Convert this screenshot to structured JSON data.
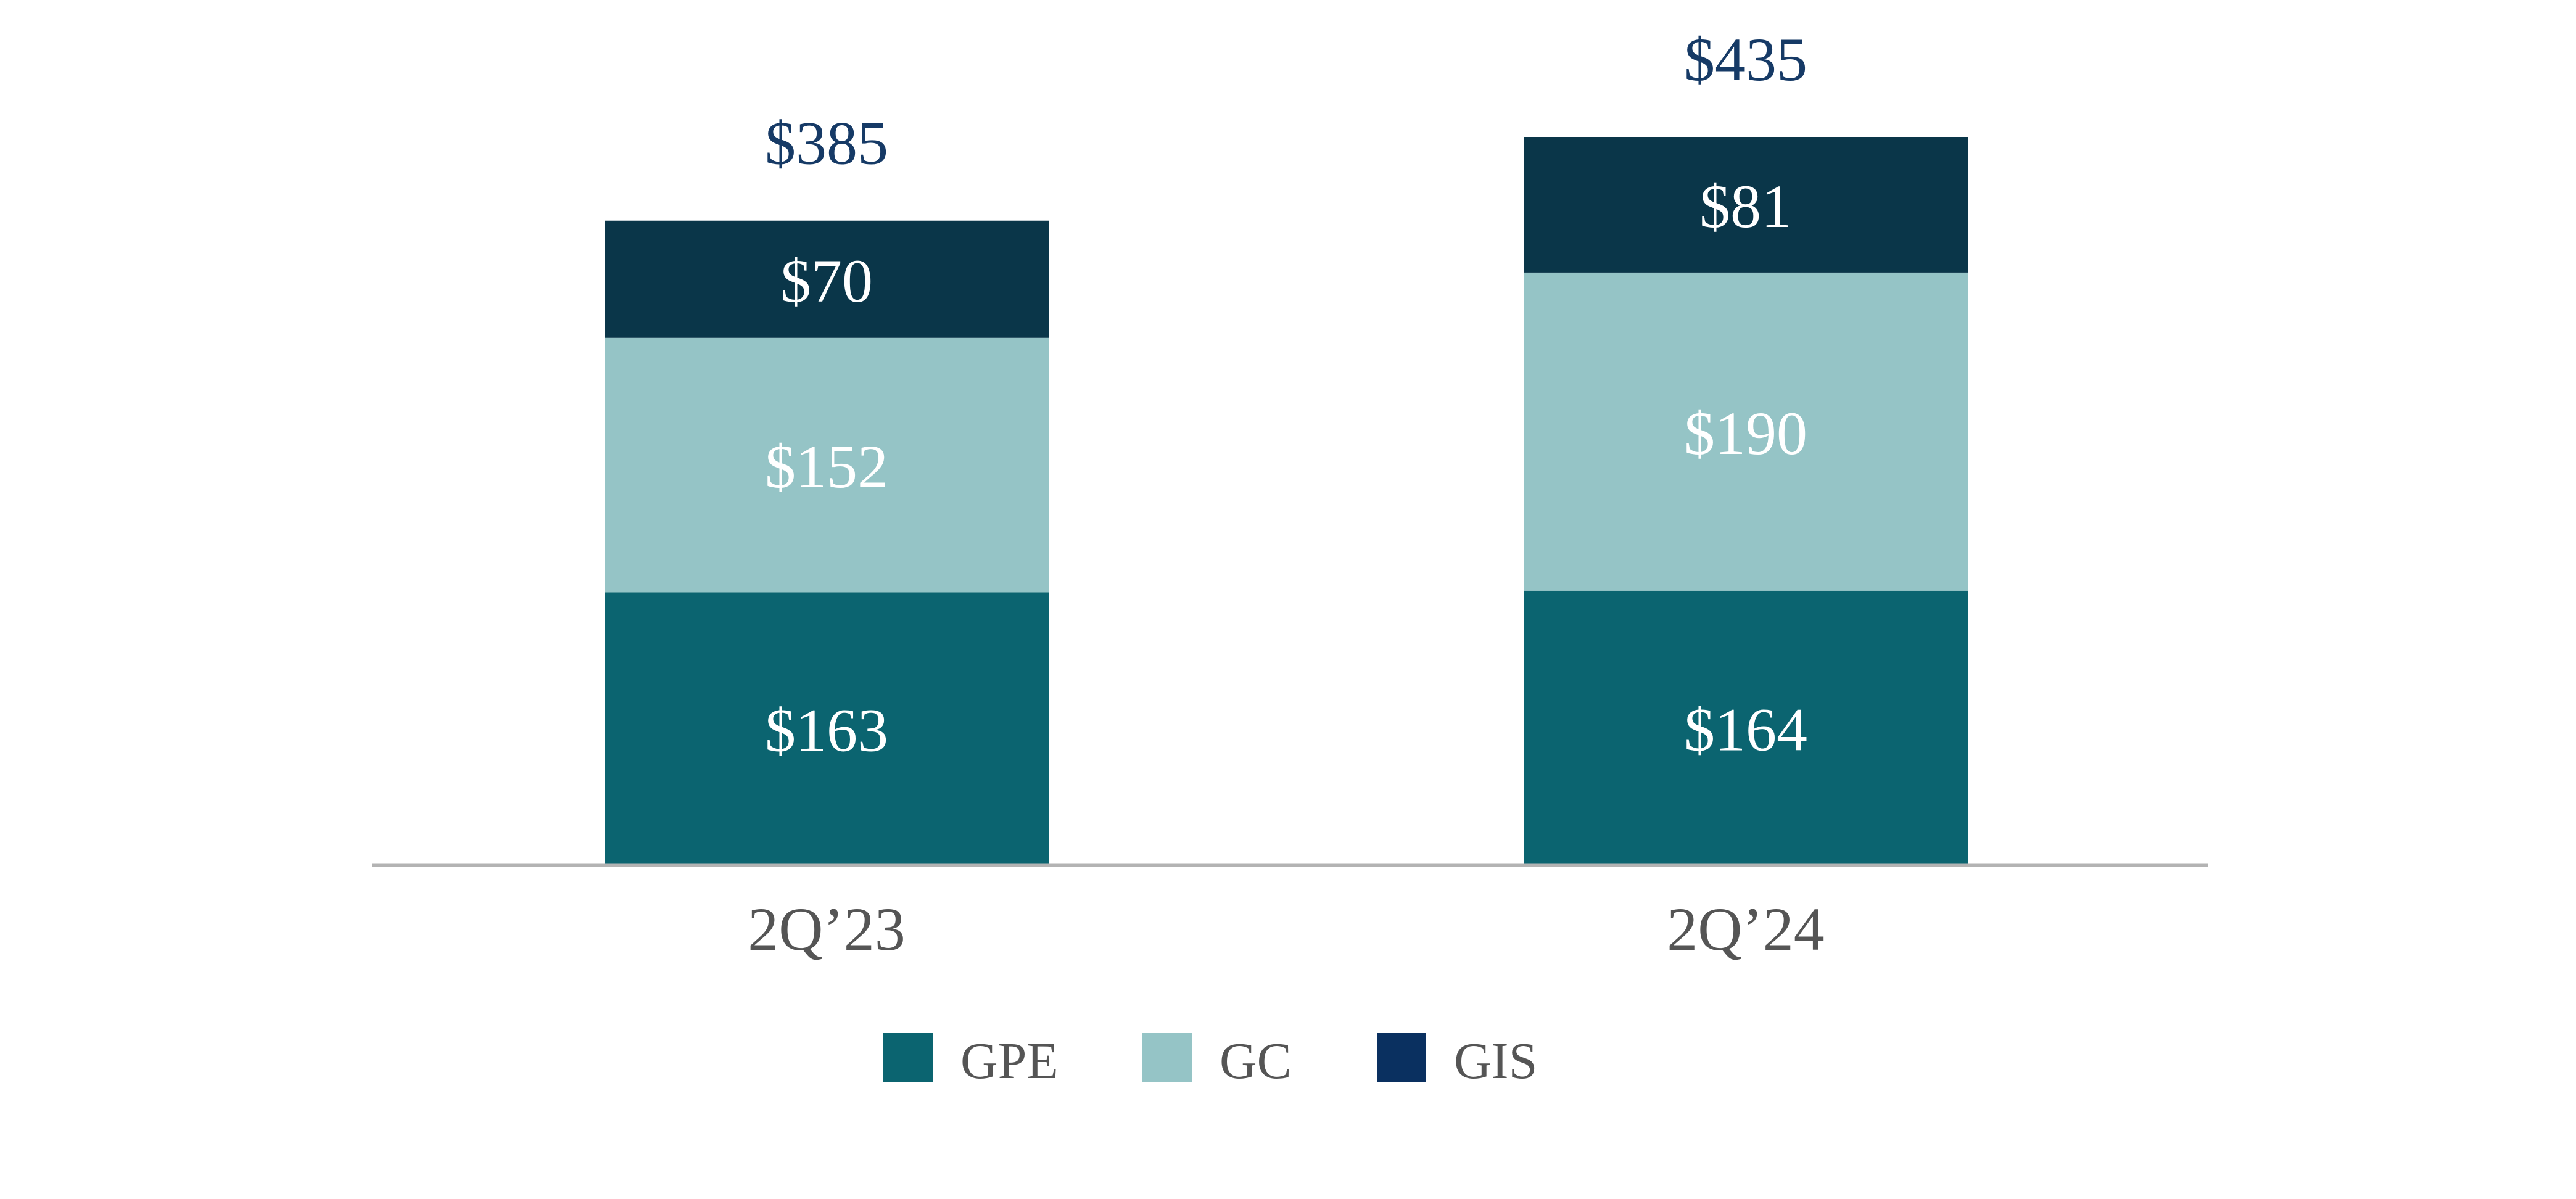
{
  "chart_data": {
    "type": "bar",
    "stacked": true,
    "categories": [
      "2Q’23",
      "2Q’24"
    ],
    "series": [
      {
        "name": "GPE",
        "values": [
          163,
          164
        ],
        "color": "#0b6470",
        "value_labels": [
          "$163",
          "$164"
        ]
      },
      {
        "name": "GC",
        "values": [
          152,
          190
        ],
        "color": "#95c4c6",
        "value_labels": [
          "$152",
          "$190"
        ]
      },
      {
        "name": "GIS",
        "values": [
          70,
          81
        ],
        "color": "#0a3649",
        "value_labels": [
          "$70",
          "$81"
        ]
      }
    ],
    "totals": [
      385,
      435
    ],
    "total_labels": [
      "$385",
      "$435"
    ],
    "ylim": [
      0,
      435
    ],
    "grid": false,
    "legend_position": "bottom-center",
    "legend": [
      {
        "name": "GPE",
        "color": "#0b6470"
      },
      {
        "name": "GC",
        "color": "#95c4c6"
      },
      {
        "name": "GIS",
        "color": "#0a3060"
      }
    ],
    "colors": {
      "segment_label": "#ffffff",
      "total_label": "#163a66",
      "axis_label": "#555555",
      "legend_text": "#555555",
      "baseline": "#b3b3b3"
    }
  }
}
